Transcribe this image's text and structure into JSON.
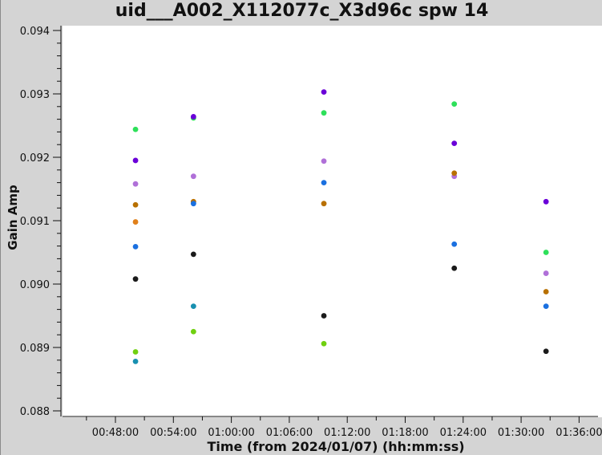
{
  "chart_data": {
    "type": "scatter",
    "title": "uid___A002_X112077c_X3d96c spw 14",
    "xlabel": "Time (from 2024/01/07) (hh:mm:ss)",
    "ylabel": "Gain Amp",
    "xlim": [
      "00:42:20",
      "01:38:50"
    ],
    "ylim": [
      0.088,
      0.094
    ],
    "xticks": [
      "00:48:00",
      "00:54:00",
      "01:00:00",
      "01:06:00",
      "01:12:00",
      "01:18:00",
      "01:24:00",
      "01:30:00",
      "01:36:00"
    ],
    "yticks": [
      "0.088",
      "0.089",
      "0.090",
      "0.091",
      "0.092",
      "0.093",
      "0.094"
    ],
    "grid": false,
    "background": "#ffffff",
    "series": [
      {
        "color": "#2ee05a",
        "points": [
          [
            "00:49:10",
            0.09244
          ],
          [
            "00:55:10",
            0.09262
          ],
          [
            "01:08:40",
            0.0927
          ],
          [
            "01:22:10",
            0.09284
          ],
          [
            "01:31:40",
            0.0905
          ]
        ]
      },
      {
        "color": "#6a00d8",
        "points": [
          [
            "00:49:10",
            0.09195
          ],
          [
            "00:55:10",
            0.09264
          ],
          [
            "01:08:40",
            0.09303
          ],
          [
            "01:22:10",
            0.09222
          ],
          [
            "01:31:40",
            0.0913
          ]
        ]
      },
      {
        "color": "#b070d8",
        "points": [
          [
            "00:49:10",
            0.09158
          ],
          [
            "00:55:10",
            0.0917
          ],
          [
            "01:08:40",
            0.09194
          ],
          [
            "01:22:10",
            0.0917
          ],
          [
            "01:31:40",
            0.09017
          ]
        ]
      },
      {
        "color": "#b87000",
        "points": [
          [
            "00:49:10",
            0.09125
          ],
          [
            "00:55:10",
            0.0913
          ],
          [
            "01:08:40",
            0.09127
          ],
          [
            "01:22:10",
            0.09175
          ],
          [
            "01:31:40",
            0.08988
          ]
        ]
      },
      {
        "color": "#e0801a",
        "points": [
          [
            "00:49:10",
            0.09098
          ]
        ]
      },
      {
        "color": "#1a70e0",
        "points": [
          [
            "00:49:10",
            0.09059
          ],
          [
            "00:55:10",
            0.09127
          ],
          [
            "01:08:40",
            0.0916
          ],
          [
            "01:22:10",
            0.09063
          ],
          [
            "01:31:40",
            0.08965
          ]
        ]
      },
      {
        "color": "#1a1a1a",
        "points": [
          [
            "00:49:10",
            0.09008
          ],
          [
            "00:55:10",
            0.09047
          ],
          [
            "01:08:40",
            0.0895
          ],
          [
            "01:22:10",
            0.09025
          ],
          [
            "01:31:40",
            0.08894
          ]
        ]
      },
      {
        "color": "#70d010",
        "points": [
          [
            "00:49:10",
            0.08893
          ],
          [
            "00:55:10",
            0.08925
          ],
          [
            "01:08:40",
            0.08906
          ]
        ]
      },
      {
        "color": "#1890b0",
        "points": [
          [
            "00:49:10",
            0.08878
          ],
          [
            "00:55:10",
            0.08965
          ]
        ]
      }
    ]
  }
}
